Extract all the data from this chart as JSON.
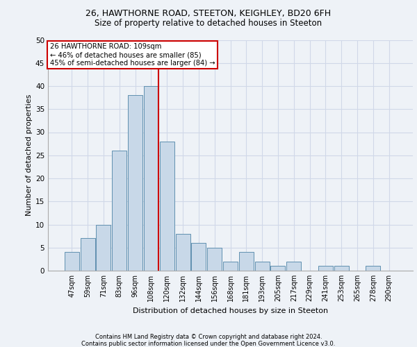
{
  "title_line1": "26, HAWTHORNE ROAD, STEETON, KEIGHLEY, BD20 6FH",
  "title_line2": "Size of property relative to detached houses in Steeton",
  "xlabel": "Distribution of detached houses by size in Steeton",
  "ylabel": "Number of detached properties",
  "categories": [
    "47sqm",
    "59sqm",
    "71sqm",
    "83sqm",
    "96sqm",
    "108sqm",
    "120sqm",
    "132sqm",
    "144sqm",
    "156sqm",
    "168sqm",
    "181sqm",
    "193sqm",
    "205sqm",
    "217sqm",
    "229sqm",
    "241sqm",
    "253sqm",
    "265sqm",
    "278sqm",
    "290sqm"
  ],
  "values": [
    4,
    7,
    10,
    26,
    38,
    40,
    28,
    8,
    6,
    5,
    2,
    4,
    2,
    1,
    2,
    0,
    1,
    1,
    0,
    1,
    0
  ],
  "bar_color": "#c8d8e8",
  "bar_edge_color": "#6090b0",
  "grid_color": "#d0d8e8",
  "background_color": "#eef2f7",
  "marker_color": "#cc0000",
  "annotation_line1": "26 HAWTHORNE ROAD: 109sqm",
  "annotation_line2": "← 46% of detached houses are smaller (85)",
  "annotation_line3": "45% of semi-detached houses are larger (84) →",
  "annotation_box_color": "#ffffff",
  "annotation_border_color": "#cc0000",
  "ylim": [
    0,
    50
  ],
  "yticks": [
    0,
    5,
    10,
    15,
    20,
    25,
    30,
    35,
    40,
    45,
    50
  ],
  "footnote1": "Contains HM Land Registry data © Crown copyright and database right 2024.",
  "footnote2": "Contains public sector information licensed under the Open Government Licence v3.0."
}
